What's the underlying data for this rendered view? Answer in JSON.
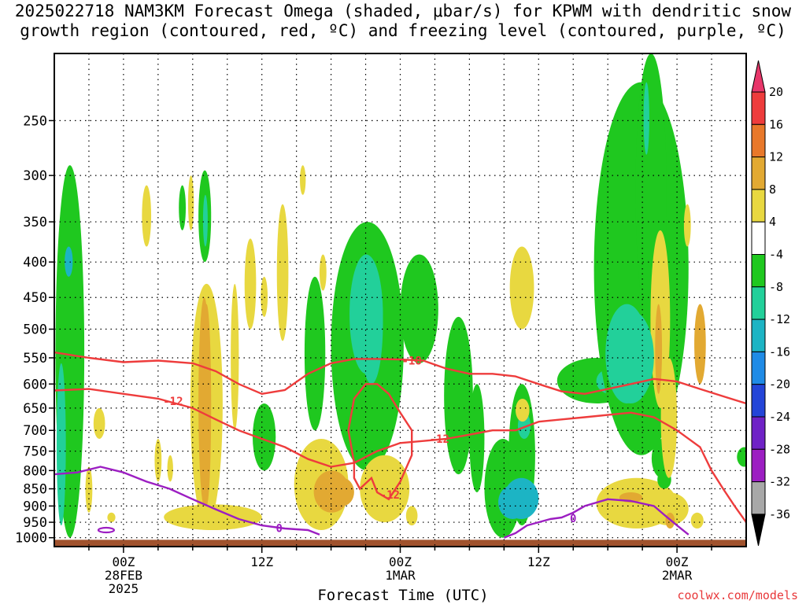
{
  "title": {
    "line1": "2025022718 NAM3KM Forecast Omega (shaded, μbar/s) for KPWM with dendritic snow",
    "line2": "growth region (contoured, red, ºC) and freezing level (contoured, purple, ºC)"
  },
  "credit": "coolwx.com/models",
  "chart_data": {
    "type": "heatmap",
    "title": "2025022718 NAM3KM Forecast Omega (shaded, μbar/s) for KPWM with dendritic snow growth region (contoured, red, ºC) and freezing level (contoured, purple, ºC)",
    "xlabel": "Forecast Time (UTC)",
    "ylabel": "",
    "x_range_hours": [
      0,
      60
    ],
    "y_scale": "log-pressure (inverted)",
    "y_range_hPa": [
      1030,
      200
    ],
    "y_ticks": [
      250,
      300,
      350,
      400,
      450,
      500,
      550,
      600,
      650,
      700,
      750,
      800,
      850,
      900,
      950,
      1000
    ],
    "x_ticks": [
      {
        "hour": 6,
        "label": "00Z",
        "sub": "28FEB",
        "year": "2025"
      },
      {
        "hour": 18,
        "label": "12Z",
        "sub": "",
        "year": ""
      },
      {
        "hour": 30,
        "label": "00Z",
        "sub": "1MAR",
        "year": ""
      },
      {
        "hour": 42,
        "label": "12Z",
        "sub": "",
        "year": ""
      },
      {
        "hour": 54,
        "label": "00Z",
        "sub": "2MAR",
        "year": ""
      }
    ],
    "colorbar": {
      "levels": [
        20,
        16,
        12,
        8,
        4,
        -4,
        -8,
        -12,
        -16,
        -20,
        -24,
        -28,
        -32,
        -36
      ],
      "colors": [
        "#e8366a",
        "#ee3c3c",
        "#e8782a",
        "#e2a932",
        "#e8d840",
        "#ffffff",
        "#1fc81f",
        "#22d09a",
        "#1cb4c4",
        "#1f8be6",
        "#2445d8",
        "#6f22c6",
        "#9c1ec2",
        "#a8a8a8",
        "#000000"
      ]
    },
    "contour_labels": [
      {
        "text": "-18",
        "color": "#ee3c3c",
        "hour": 31.0,
        "p": 555
      },
      {
        "text": "-12",
        "color": "#ee3c3c",
        "hour": 10.3,
        "p": 635
      },
      {
        "text": "-12",
        "color": "#ee3c3c",
        "hour": 33.4,
        "p": 720
      },
      {
        "text": "-12",
        "color": "#ee3c3c",
        "hour": 29.1,
        "p": 867
      },
      {
        "text": "0",
        "color": "#9c1ec2",
        "hour": 19.5,
        "p": 968
      },
      {
        "text": "0",
        "color": "#9c1ec2",
        "hour": 45.0,
        "p": 937
      }
    ],
    "series": [
      {
        "name": "-18",
        "color": "#ee3c3c",
        "points": [
          [
            0,
            540
          ],
          [
            3,
            550
          ],
          [
            6,
            558
          ],
          [
            9,
            555
          ],
          [
            12,
            560
          ],
          [
            14,
            575
          ],
          [
            16,
            600
          ],
          [
            18,
            620
          ],
          [
            20,
            612
          ],
          [
            22,
            580
          ],
          [
            24,
            560
          ],
          [
            26,
            552
          ],
          [
            28,
            552
          ],
          [
            30,
            553
          ],
          [
            32,
            555
          ],
          [
            34,
            570
          ],
          [
            36,
            580
          ],
          [
            38,
            580
          ],
          [
            40,
            585
          ],
          [
            42,
            600
          ],
          [
            44,
            615
          ],
          [
            46,
            620
          ],
          [
            48,
            610
          ],
          [
            50,
            600
          ],
          [
            52,
            590
          ],
          [
            54,
            595
          ],
          [
            56,
            610
          ],
          [
            58,
            625
          ],
          [
            60,
            640
          ]
        ]
      },
      {
        "name": "-12",
        "color": "#ee3c3c",
        "points": [
          [
            0,
            613
          ],
          [
            3,
            610
          ],
          [
            6,
            620
          ],
          [
            9,
            630
          ],
          [
            12,
            650
          ],
          [
            14,
            675
          ],
          [
            16,
            700
          ],
          [
            18,
            720
          ],
          [
            20,
            740
          ],
          [
            22,
            770
          ],
          [
            24,
            790
          ],
          [
            26,
            780
          ],
          [
            28,
            750
          ],
          [
            30,
            730
          ],
          [
            32,
            725
          ],
          [
            34,
            720
          ],
          [
            36,
            710
          ],
          [
            38,
            700
          ],
          [
            40,
            700
          ],
          [
            42,
            680
          ],
          [
            44,
            675
          ],
          [
            46,
            670
          ],
          [
            48,
            665
          ],
          [
            50,
            660
          ],
          [
            52,
            670
          ],
          [
            54,
            700
          ],
          [
            56,
            740
          ],
          [
            57,
            800
          ],
          [
            58,
            850
          ],
          [
            59,
            900
          ],
          [
            60,
            950
          ]
        ]
      },
      {
        "name": "0",
        "color": "#9c1ec2",
        "points": [
          [
            0,
            810
          ],
          [
            2,
            805
          ],
          [
            4,
            790
          ],
          [
            6,
            805
          ],
          [
            8,
            830
          ],
          [
            10,
            850
          ],
          [
            12,
            880
          ],
          [
            14,
            910
          ],
          [
            16,
            940
          ],
          [
            18,
            960
          ],
          [
            20,
            970
          ],
          [
            22,
            975
          ],
          [
            23,
            990
          ]
        ]
      },
      {
        "name": "0",
        "color": "#9c1ec2",
        "points": [
          [
            39,
            1000
          ],
          [
            40,
            985
          ],
          [
            41,
            960
          ],
          [
            43,
            940
          ],
          [
            44,
            935
          ],
          [
            45,
            920
          ],
          [
            46,
            900
          ],
          [
            48,
            880
          ],
          [
            50,
            885
          ],
          [
            52,
            900
          ],
          [
            53,
            930
          ],
          [
            54,
            960
          ],
          [
            55,
            990
          ]
        ]
      }
    ],
    "shaded_regions": [
      {
        "class": "8 to 12",
        "x": [
          12.5,
          13.5
        ],
        "p": [
          450,
          900
        ]
      },
      {
        "class": "8 to 12",
        "x": [
          55.5,
          56.5
        ],
        "p": [
          460,
          600
        ]
      },
      {
        "class": "8 to 12",
        "x": [
          24,
          26
        ],
        "p": [
          820,
          900
        ]
      },
      {
        "class": "-12 to -8",
        "x": [
          26.5,
          28.5
        ],
        "p": [
          400,
          600
        ]
      },
      {
        "class": "-12 to -8",
        "x": [
          48,
          52
        ],
        "p": [
          470,
          640
        ]
      },
      {
        "class": "-16 to -12",
        "x": [
          39,
          42
        ],
        "p": [
          820,
          940
        ]
      }
    ]
  }
}
